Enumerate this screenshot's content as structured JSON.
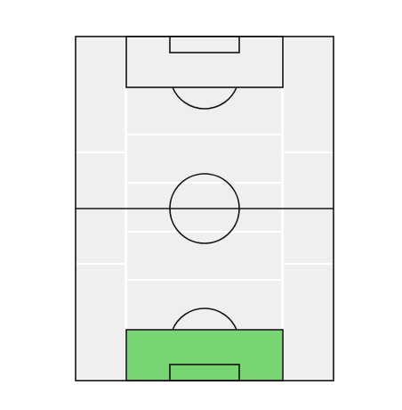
{
  "pitch": {
    "highlighted_zone": "bottom-penalty-area",
    "colors": {
      "background": "#ffffff",
      "zone_fill": "#efefef",
      "zone_separator": "#ffffff",
      "line": "#111111",
      "highlight": "#77d672"
    }
  }
}
